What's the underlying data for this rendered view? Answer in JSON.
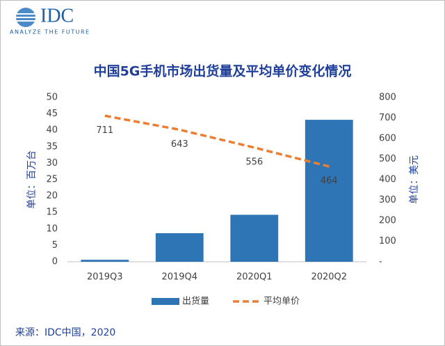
{
  "logo": {
    "name": "IDC",
    "tagline": "ANALYZE THE FUTURE"
  },
  "chart_data": {
    "type": "bar_line",
    "title": "中国5G手机市场出货量及平均单价变化情况",
    "y_label": "单位：百万台",
    "y2_label": "单位：美元",
    "categories": [
      "2019Q3",
      "2019Q4",
      "2020Q1",
      "2020Q2"
    ],
    "series": [
      {
        "name": "出货量",
        "color": "#2e75b6",
        "type": "bar",
        "values": [
          0.6,
          8.7,
          14.3,
          43.2
        ]
      },
      {
        "name": "平均单价",
        "color": "#ed7d31",
        "type": "line",
        "axis": "y2",
        "dashed": true,
        "data_labels": true,
        "values": [
          711,
          643,
          556,
          464
        ]
      }
    ],
    "ylim": [
      0,
      50
    ],
    "yticks": [
      0,
      5,
      10,
      15,
      20,
      25,
      30,
      35,
      40,
      45,
      50
    ],
    "y2lim": [
      0,
      800
    ],
    "y2ticks": [
      {
        "value": 0,
        "label": "-"
      },
      100,
      200,
      300,
      400,
      500,
      600,
      700,
      800
    ],
    "grid": false,
    "legend": "bottom",
    "source": "来源：IDC中国，2020"
  }
}
